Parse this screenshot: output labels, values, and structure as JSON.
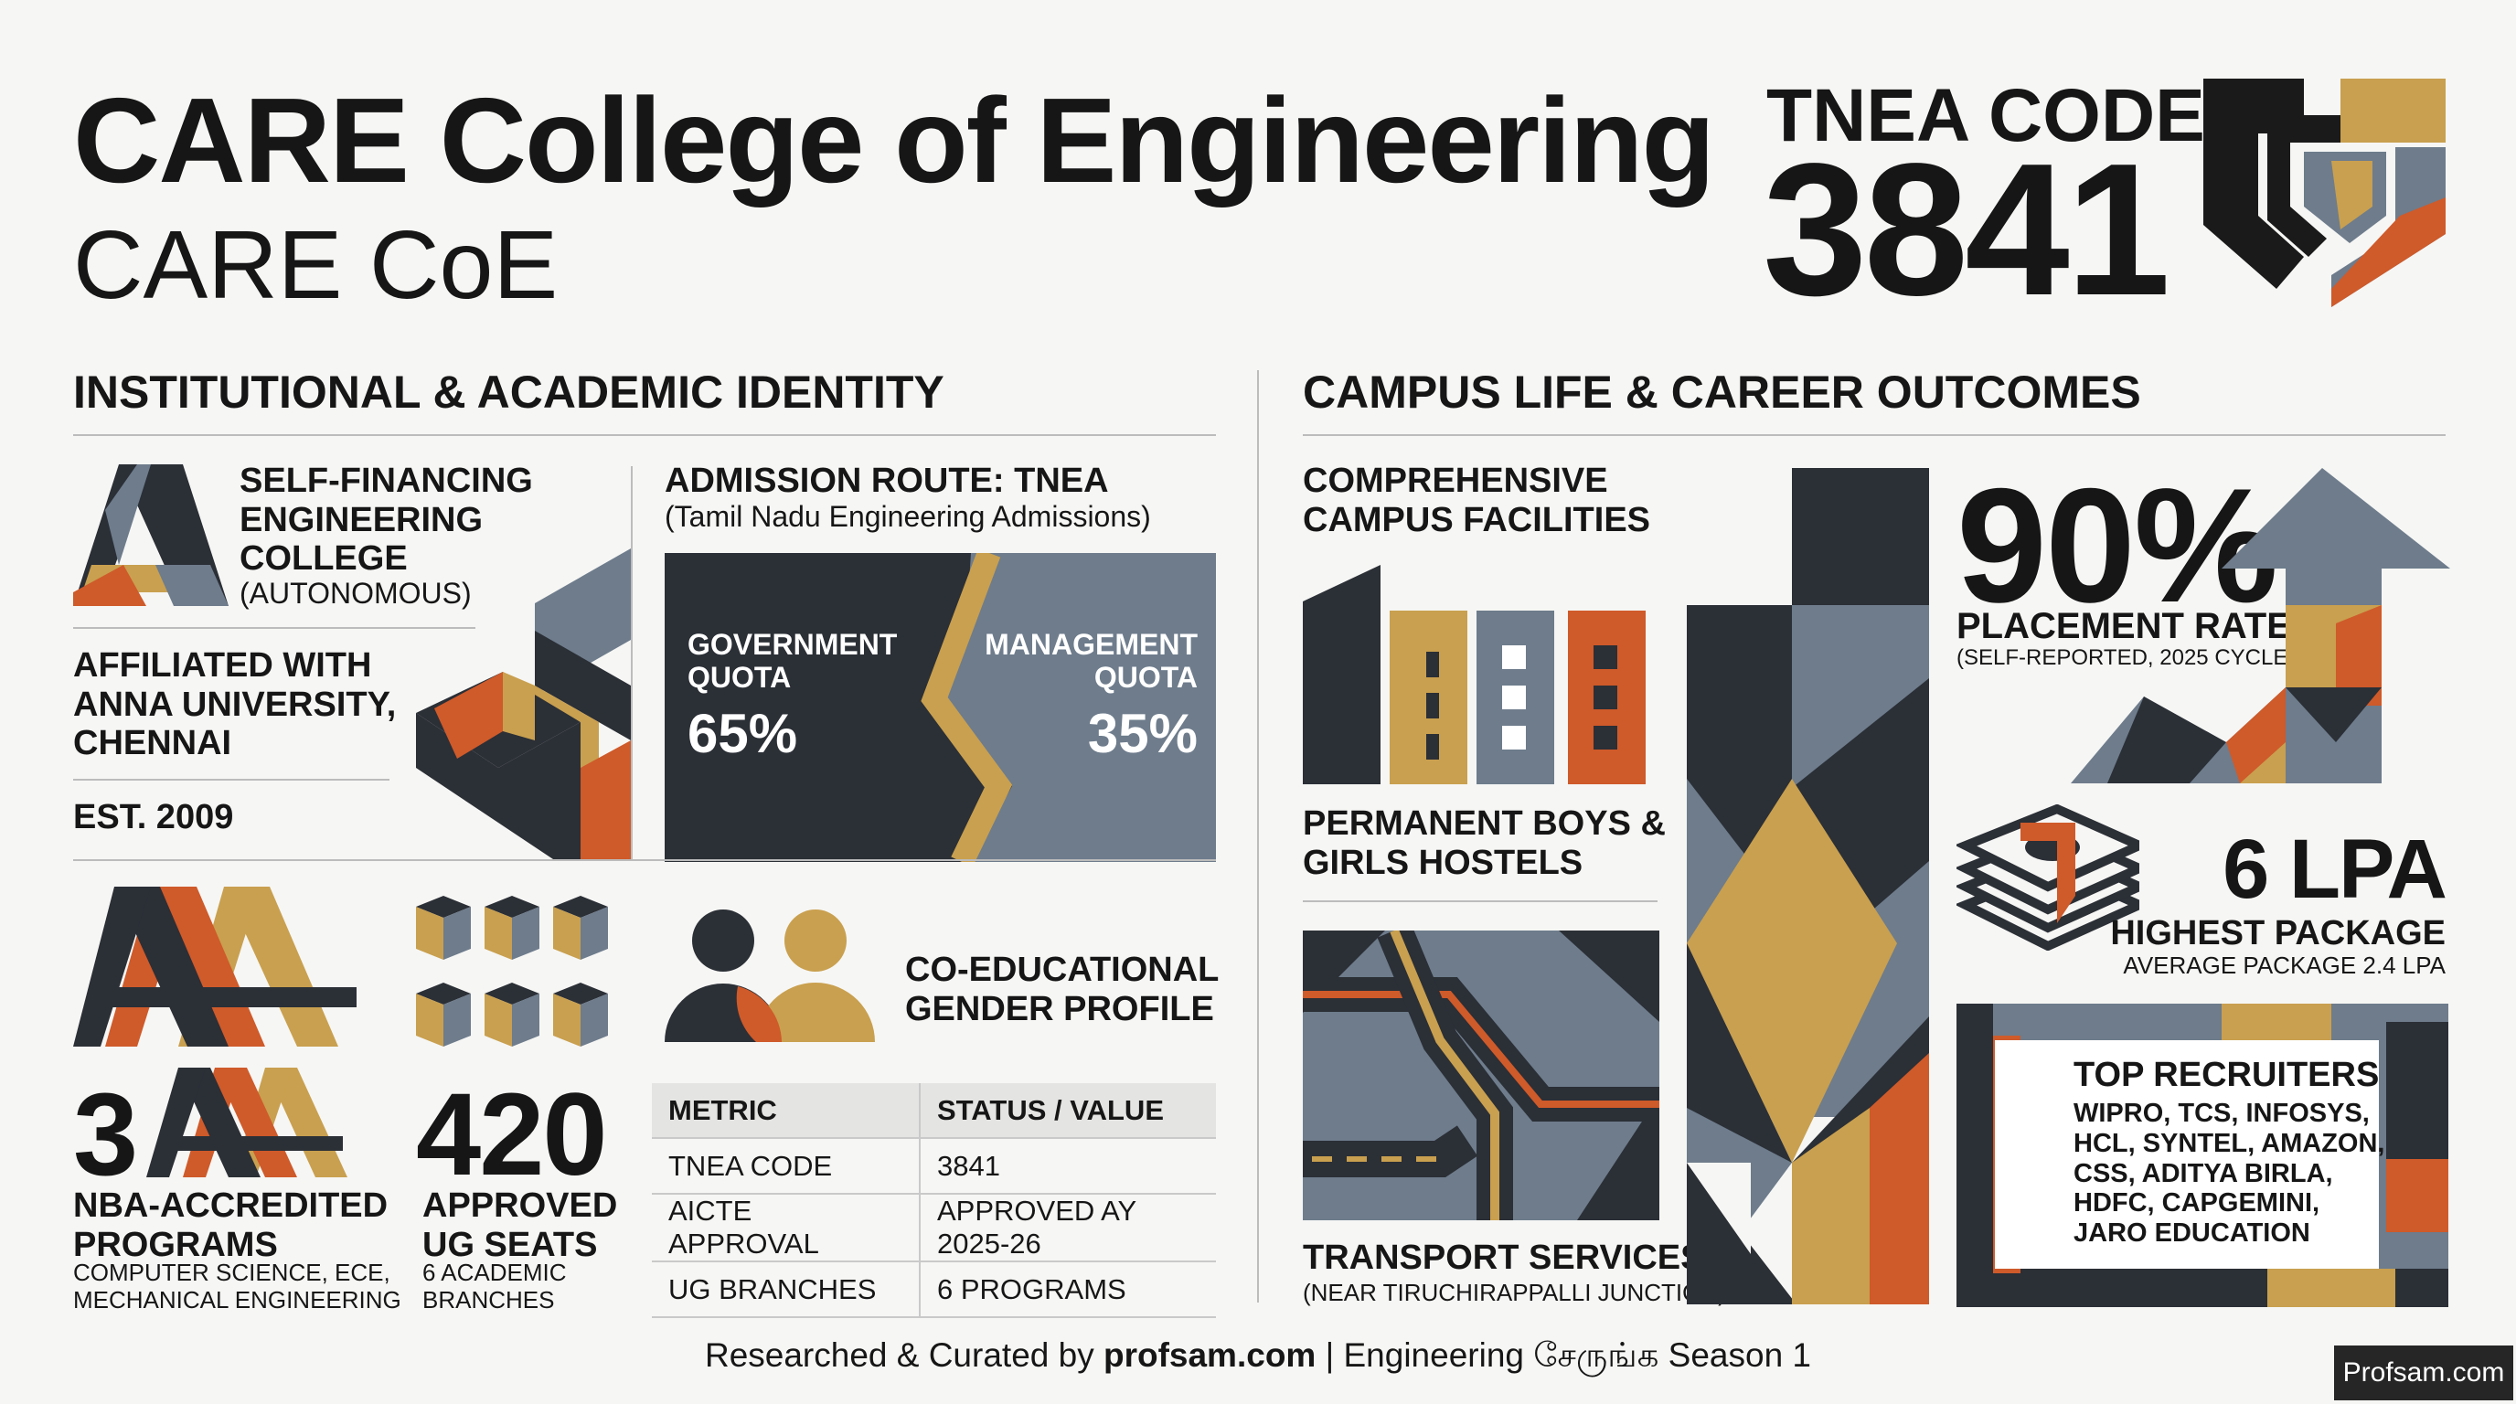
{
  "header": {
    "title": "CARE College of Engineering",
    "subtitle": "CARE CoE",
    "tnea_label": "TNEA CODE",
    "tnea_code": "3841"
  },
  "left": {
    "section_title": "INSTITUTIONAL & ACADEMIC IDENTITY",
    "type_line1": "SELF-FINANCING",
    "type_line2": "ENGINEERING",
    "type_line3": "COLLEGE",
    "type_note": "(AUTONOMOUS)",
    "affil_line1": "AFFILIATED WITH",
    "affil_line2": "ANNA UNIVERSITY,",
    "affil_line3": "CHENNAI",
    "established": "EST. 2009",
    "admission_title": "ADMISSION ROUTE: TNEA",
    "admission_sub": "(Tamil Nadu Engineering Admissions)",
    "gov_quota_line1": "GOVERNMENT",
    "gov_quota_line2": "QUOTA",
    "gov_quota_value": "65%",
    "mgmt_quota_line1": "MANAGEMENT",
    "mgmt_quota_line2": "QUOTA",
    "mgmt_quota_value": "35%",
    "nba_value": "3",
    "nba_line1": "NBA-ACCREDITED",
    "nba_line2": "PROGRAMS",
    "nba_programs_line1": "COMPUTER SCIENCE, ECE,",
    "nba_programs_line2": "MECHANICAL ENGINEERING",
    "seats_value": "420",
    "seats_line1": "APPROVED",
    "seats_line2": "UG SEATS",
    "branches_line1": "6 ACADEMIC",
    "branches_line2": "BRANCHES",
    "coed_line1": "CO-EDUCATIONAL",
    "coed_line2": "GENDER PROFILE",
    "table": {
      "headers": [
        "METRIC",
        "STATUS / VALUE"
      ],
      "rows": [
        [
          "TNEA CODE",
          "3841"
        ],
        [
          "AICTE APPROVAL",
          "APPROVED AY 2025-26"
        ],
        [
          "UG BRANCHES",
          "6 PROGRAMS"
        ]
      ]
    }
  },
  "right": {
    "section_title": "CAMPUS LIFE & CAREER OUTCOMES",
    "facilities_line1": "COMPREHENSIVE",
    "facilities_line2": "CAMPUS FACILITIES",
    "hostels_line1": "PERMANENT BOYS &",
    "hostels_line2": "GIRLS HOSTELS",
    "transport_title": "TRANSPORT SERVICES",
    "transport_note": "(NEAR TIRUCHIRAPPALLI JUNCTION)",
    "placement_value": "90%",
    "placement_label": "PLACEMENT RATE",
    "placement_note": "(SELF-REPORTED, 2025 CYCLE)",
    "package_value": "6 LPA",
    "package_label": "HIGHEST PACKAGE",
    "package_note": "AVERAGE PACKAGE 2.4 LPA",
    "recruiters_title": "TOP RECRUITERS",
    "recruiters_line1": "WIPRO, TCS, INFOSYS,",
    "recruiters_line2": "HCL, SYNTEL, AMAZON,",
    "recruiters_line3": "CSS, ADITYA BIRLA,",
    "recruiters_line4": "HDFC, CAPGEMINI,",
    "recruiters_line5": "JARO EDUCATION"
  },
  "footer": {
    "prefix": "Researched & Curated by ",
    "site": "profsam.com",
    "suffix": " | Engineering சேருங்க Season 1",
    "badge": "Profsam.com"
  },
  "colors": {
    "dark": "#2b2f36",
    "slate": "#6e7c8c",
    "gold": "#c9a04f",
    "orange": "#cf5a2a",
    "background": "#f6f6f4"
  }
}
